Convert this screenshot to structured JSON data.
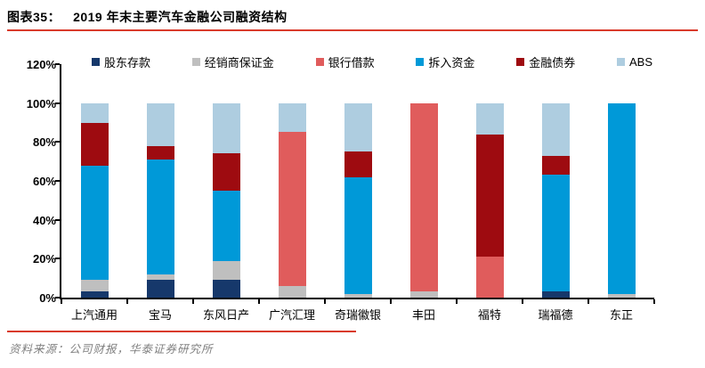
{
  "header": {
    "figure_label": "图表35：",
    "title": "2019 年末主要汽车金融公司融资结构"
  },
  "footer": {
    "source": "资料来源：公司财报，华泰证券研究所"
  },
  "colors": {
    "accent_rule": "#D93B2B",
    "axis": "#000000"
  },
  "chart_data": {
    "type": "bar",
    "stacked": true,
    "unit": "%",
    "title": "2019 年末主要汽车金融公司融资结构",
    "xlabel": "",
    "ylabel": "",
    "ylim": [
      0,
      120
    ],
    "grid": false,
    "legend_position": "top-inside",
    "categories": [
      "上汽通用",
      "宝马",
      "东风日产",
      "广汽汇理",
      "奇瑞徽银",
      "丰田",
      "福特",
      "瑞福德",
      "东正"
    ],
    "yticks": [
      0,
      20,
      40,
      60,
      80,
      100,
      120
    ],
    "ytick_labels": [
      "0%",
      "20%",
      "40%",
      "60%",
      "80%",
      "100%",
      "120%"
    ],
    "series": [
      {
        "name": "股东存款",
        "color": "#16386B",
        "values": [
          3,
          9,
          9,
          0,
          0,
          0,
          0,
          3,
          0
        ]
      },
      {
        "name": "经销商保证金",
        "color": "#BFBFBF",
        "values": [
          6,
          3,
          10,
          6,
          2,
          3,
          0,
          0,
          2
        ]
      },
      {
        "name": "银行借款",
        "color": "#E05C5C",
        "values": [
          0,
          0,
          0,
          79,
          0,
          97,
          21,
          0,
          0
        ]
      },
      {
        "name": "拆入资金",
        "color": "#0099D8",
        "values": [
          59,
          59,
          36,
          0,
          60,
          0,
          0,
          60,
          98
        ]
      },
      {
        "name": "金融债券",
        "color": "#9E0B10",
        "values": [
          22,
          7,
          19,
          0,
          13,
          0,
          63,
          10,
          0
        ]
      },
      {
        "name": "ABS",
        "color": "#AECDE0",
        "values": [
          10,
          22,
          26,
          15,
          25,
          0,
          16,
          27,
          0
        ]
      }
    ]
  }
}
